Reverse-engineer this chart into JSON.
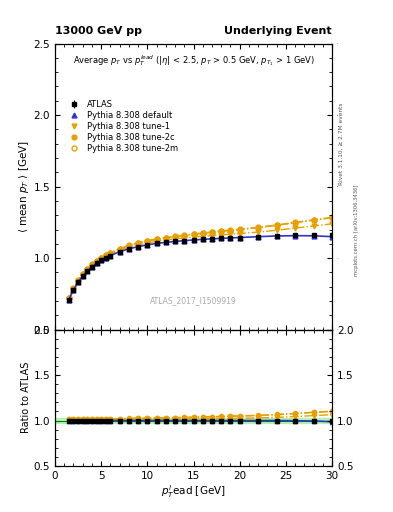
{
  "title_left": "13000 GeV pp",
  "title_right": "Underlying Event",
  "annotation": "ATLAS_2017_I1509919",
  "right_label_top": "Rivet 3.1.10, ≥ 2.7M events",
  "right_label_bottom": "mcplots.cern.ch [arXiv:1306.3436]",
  "xlabel": "$p_T^l$ead [GeV]",
  "ylabel_main": "$\\langle$ mean $p_T$ $\\rangle$ [GeV]",
  "ylabel_ratio": "Ratio to ATLAS",
  "xlim": [
    0,
    30
  ],
  "ylim_main": [
    0.5,
    2.5
  ],
  "ylim_ratio": [
    0.5,
    2.0
  ],
  "yticks_main": [
    0.5,
    1.0,
    1.5,
    2.0,
    2.5
  ],
  "yticks_ratio": [
    0.5,
    1.0,
    1.5,
    2.0
  ],
  "atlas_x": [
    1.5,
    2.0,
    2.5,
    3.0,
    3.5,
    4.0,
    4.5,
    5.0,
    5.5,
    6.0,
    7.0,
    8.0,
    9.0,
    10.0,
    11.0,
    12.0,
    13.0,
    14.0,
    15.0,
    16.0,
    17.0,
    18.0,
    19.0,
    20.0,
    22.0,
    24.0,
    26.0,
    28.0,
    30.0
  ],
  "atlas_y": [
    0.71,
    0.778,
    0.831,
    0.875,
    0.908,
    0.94,
    0.963,
    0.985,
    1.003,
    1.018,
    1.045,
    1.065,
    1.08,
    1.093,
    1.103,
    1.11,
    1.117,
    1.122,
    1.127,
    1.131,
    1.135,
    1.138,
    1.141,
    1.144,
    1.15,
    1.155,
    1.16,
    1.162,
    1.165
  ],
  "atlas_yerr": [
    0.005,
    0.004,
    0.004,
    0.003,
    0.003,
    0.003,
    0.003,
    0.003,
    0.003,
    0.003,
    0.003,
    0.003,
    0.003,
    0.003,
    0.003,
    0.003,
    0.003,
    0.003,
    0.003,
    0.003,
    0.003,
    0.003,
    0.003,
    0.003,
    0.004,
    0.004,
    0.004,
    0.005,
    0.006
  ],
  "pythia_default_x": [
    1.5,
    2.0,
    2.5,
    3.0,
    3.5,
    4.0,
    4.5,
    5.0,
    5.5,
    6.0,
    7.0,
    8.0,
    9.0,
    10.0,
    11.0,
    12.0,
    13.0,
    14.0,
    15.0,
    16.0,
    17.0,
    18.0,
    19.0,
    20.0,
    22.0,
    24.0,
    26.0,
    28.0,
    30.0
  ],
  "pythia_default_y": [
    0.71,
    0.778,
    0.831,
    0.875,
    0.908,
    0.94,
    0.963,
    0.985,
    1.003,
    1.018,
    1.045,
    1.065,
    1.08,
    1.093,
    1.103,
    1.11,
    1.117,
    1.122,
    1.127,
    1.131,
    1.135,
    1.138,
    1.141,
    1.144,
    1.15,
    1.155,
    1.157,
    1.156,
    1.15
  ],
  "pythia_tune1_x": [
    1.5,
    2.0,
    2.5,
    3.0,
    3.5,
    4.0,
    4.5,
    5.0,
    5.5,
    6.0,
    7.0,
    8.0,
    9.0,
    10.0,
    11.0,
    12.0,
    13.0,
    14.0,
    15.0,
    16.0,
    17.0,
    18.0,
    19.0,
    20.0,
    22.0,
    24.0,
    26.0,
    28.0,
    30.0
  ],
  "pythia_tune1_y": [
    0.715,
    0.783,
    0.838,
    0.882,
    0.916,
    0.947,
    0.971,
    0.993,
    1.011,
    1.027,
    1.054,
    1.075,
    1.092,
    1.106,
    1.117,
    1.126,
    1.134,
    1.141,
    1.147,
    1.153,
    1.158,
    1.163,
    1.167,
    1.172,
    1.182,
    1.195,
    1.21,
    1.225,
    1.24
  ],
  "pythia_tune2c_x": [
    1.5,
    2.0,
    2.5,
    3.0,
    3.5,
    4.0,
    4.5,
    5.0,
    5.5,
    6.0,
    7.0,
    8.0,
    9.0,
    10.0,
    11.0,
    12.0,
    13.0,
    14.0,
    15.0,
    16.0,
    17.0,
    18.0,
    19.0,
    20.0,
    22.0,
    24.0,
    26.0,
    28.0,
    30.0
  ],
  "pythia_tune2c_y": [
    0.72,
    0.79,
    0.845,
    0.89,
    0.924,
    0.956,
    0.98,
    1.003,
    1.022,
    1.038,
    1.067,
    1.09,
    1.108,
    1.122,
    1.134,
    1.144,
    1.153,
    1.161,
    1.169,
    1.176,
    1.183,
    1.19,
    1.196,
    1.202,
    1.216,
    1.232,
    1.25,
    1.268,
    1.285
  ],
  "pythia_tune2m_x": [
    1.5,
    2.0,
    2.5,
    3.0,
    3.5,
    4.0,
    4.5,
    5.0,
    5.5,
    6.0,
    7.0,
    8.0,
    9.0,
    10.0,
    11.0,
    12.0,
    13.0,
    14.0,
    15.0,
    16.0,
    17.0,
    18.0,
    19.0,
    20.0,
    22.0,
    24.0,
    26.0,
    28.0,
    30.0
  ],
  "pythia_tune2m_y": [
    0.718,
    0.787,
    0.842,
    0.887,
    0.921,
    0.953,
    0.977,
    1.0,
    1.019,
    1.035,
    1.064,
    1.087,
    1.105,
    1.119,
    1.131,
    1.141,
    1.15,
    1.158,
    1.166,
    1.173,
    1.18,
    1.187,
    1.193,
    1.199,
    1.213,
    1.229,
    1.247,
    1.265,
    1.282
  ],
  "color_data": "#000000",
  "color_default": "#3333cc",
  "color_tune": "#e8a000",
  "ratio_band_color": "#90ee90",
  "ratio_band_alpha": 0.6
}
